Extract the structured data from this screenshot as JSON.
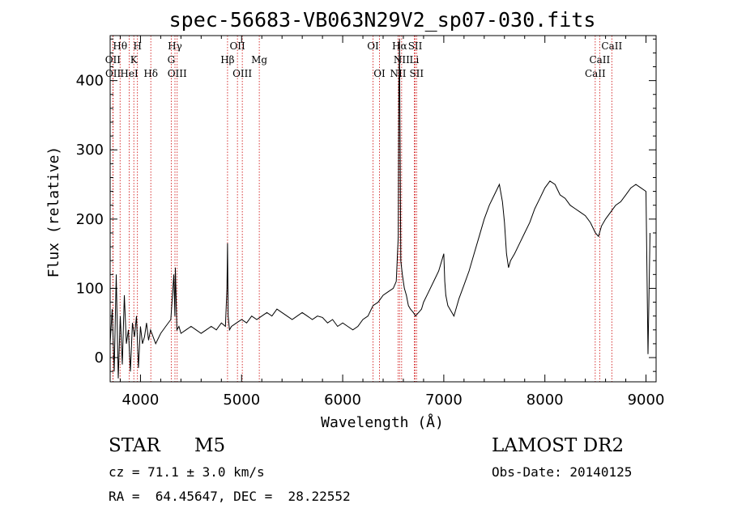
{
  "chart_data": {
    "type": "line",
    "title": "spec-56683-VB063N29V2_sp07-030.fits",
    "xlabel": "Wavelength (Å)",
    "ylabel": "Flux (relative)",
    "xlim": [
      3700,
      9100
    ],
    "ylim": [
      -35,
      465
    ],
    "xticks": [
      4000,
      5000,
      6000,
      7000,
      8000,
      9000
    ],
    "yticks": [
      0,
      100,
      200,
      300,
      400
    ],
    "series": [
      {
        "x": [
          3700,
          3720,
          3740,
          3760,
          3780,
          3800,
          3820,
          3840,
          3860,
          3880,
          3900,
          3920,
          3940,
          3960,
          3980,
          4000,
          4020,
          4040,
          4060,
          4080,
          4100,
          4150,
          4200,
          4250,
          4300,
          4330,
          4340,
          4345,
          4360,
          4380,
          4400,
          4450,
          4500,
          4550,
          4600,
          4650,
          4700,
          4750,
          4800,
          4840,
          4855,
          4861,
          4867,
          4880,
          4900,
          4950,
          5000,
          5050,
          5100,
          5150,
          5200,
          5250,
          5300,
          5350,
          5400,
          5450,
          5500,
          5550,
          5600,
          5650,
          5700,
          5750,
          5800,
          5850,
          5900,
          5950,
          6000,
          6050,
          6100,
          6150,
          6200,
          6250,
          6300,
          6350,
          6400,
          6450,
          6500,
          6530,
          6550,
          6556,
          6562,
          6568,
          6575,
          6590,
          6610,
          6630,
          6650,
          6670,
          6700,
          6720,
          6750,
          6780,
          6800,
          6850,
          6900,
          6950,
          6980,
          7000,
          7010,
          7020,
          7040,
          7060,
          7080,
          7100,
          7120,
          7150,
          7200,
          7250,
          7300,
          7350,
          7400,
          7450,
          7500,
          7550,
          7580,
          7600,
          7620,
          7640,
          7660,
          7700,
          7750,
          7800,
          7850,
          7900,
          7950,
          8000,
          8050,
          8100,
          8150,
          8200,
          8250,
          8300,
          8350,
          8400,
          8450,
          8500,
          8530,
          8560,
          8600,
          8650,
          8700,
          8750,
          8800,
          8850,
          8900,
          8950,
          9000,
          9020,
          9040
        ],
        "y": [
          20,
          70,
          -20,
          120,
          -30,
          60,
          -10,
          90,
          20,
          40,
          -20,
          50,
          30,
          60,
          -15,
          45,
          20,
          30,
          50,
          25,
          40,
          20,
          35,
          45,
          55,
          120,
          60,
          130,
          40,
          45,
          35,
          40,
          45,
          40,
          35,
          40,
          45,
          40,
          50,
          45,
          100,
          165,
          60,
          40,
          45,
          50,
          55,
          50,
          60,
          55,
          60,
          65,
          60,
          70,
          65,
          60,
          55,
          60,
          65,
          60,
          55,
          60,
          58,
          50,
          55,
          45,
          50,
          45,
          40,
          45,
          55,
          60,
          75,
          80,
          90,
          95,
          100,
          110,
          175,
          390,
          460,
          300,
          140,
          120,
          100,
          90,
          75,
          70,
          65,
          60,
          65,
          70,
          80,
          95,
          110,
          125,
          140,
          150,
          110,
          90,
          75,
          70,
          65,
          60,
          70,
          85,
          105,
          125,
          150,
          175,
          200,
          220,
          235,
          250,
          225,
          195,
          150,
          130,
          140,
          150,
          165,
          180,
          195,
          215,
          230,
          245,
          255,
          250,
          235,
          230,
          220,
          215,
          210,
          205,
          195,
          180,
          175,
          190,
          200,
          210,
          220,
          225,
          235,
          245,
          250,
          245,
          240,
          5,
          180
        ]
      }
    ],
    "spectral_lines": [
      {
        "name": "Hθ",
        "x": 3798,
        "row": 0
      },
      {
        "name": "H",
        "x": 3970,
        "row": 0
      },
      {
        "name": "Hγ",
        "x": 4341,
        "row": 0
      },
      {
        "name": "OII",
        "x": 4959,
        "row": 0
      },
      {
        "name": "OI",
        "x": 6300,
        "row": 0
      },
      {
        "name": "Hα",
        "x": 6563,
        "row": 0
      },
      {
        "name": "SII",
        "x": 6717,
        "row": 0
      },
      {
        "name": "CaII",
        "x": 8662,
        "row": 0
      },
      {
        "name": "OII",
        "x": 3727,
        "row": 1
      },
      {
        "name": "K",
        "x": 3934,
        "row": 1
      },
      {
        "name": "G",
        "x": 4304,
        "row": 1
      },
      {
        "name": "Hβ",
        "x": 4861,
        "row": 1
      },
      {
        "name": "Mg",
        "x": 5175,
        "row": 1
      },
      {
        "name": "NII",
        "x": 6583,
        "row": 1
      },
      {
        "name": "Li",
        "x": 6708,
        "row": 1
      },
      {
        "name": "CaII",
        "x": 8542,
        "row": 1
      },
      {
        "name": "OII",
        "x": 3729,
        "row": 2
      },
      {
        "name": "HeI",
        "x": 3889,
        "row": 2
      },
      {
        "name": "Hδ",
        "x": 4102,
        "row": 2
      },
      {
        "name": "OIII",
        "x": 4363,
        "row": 2
      },
      {
        "name": "OIII",
        "x": 5007,
        "row": 2
      },
      {
        "name": "OI",
        "x": 6364,
        "row": 2
      },
      {
        "name": "NII",
        "x": 6548,
        "row": 2
      },
      {
        "name": "SII",
        "x": 6731,
        "row": 2
      },
      {
        "name": "CaII",
        "x": 8498,
        "row": 2
      }
    ]
  },
  "info": {
    "class_label": "STAR",
    "subclass": "M5",
    "survey": "LAMOST DR2",
    "cz": "cz = 71.1 ± 3.0 km/s",
    "obs_date": "Obs-Date: 20140125",
    "radec": "RA =  64.45647, DEC =  28.22552"
  },
  "colors": {
    "axis": "#000000",
    "spectrum": "#000000",
    "line_markers": "#cc0000"
  }
}
